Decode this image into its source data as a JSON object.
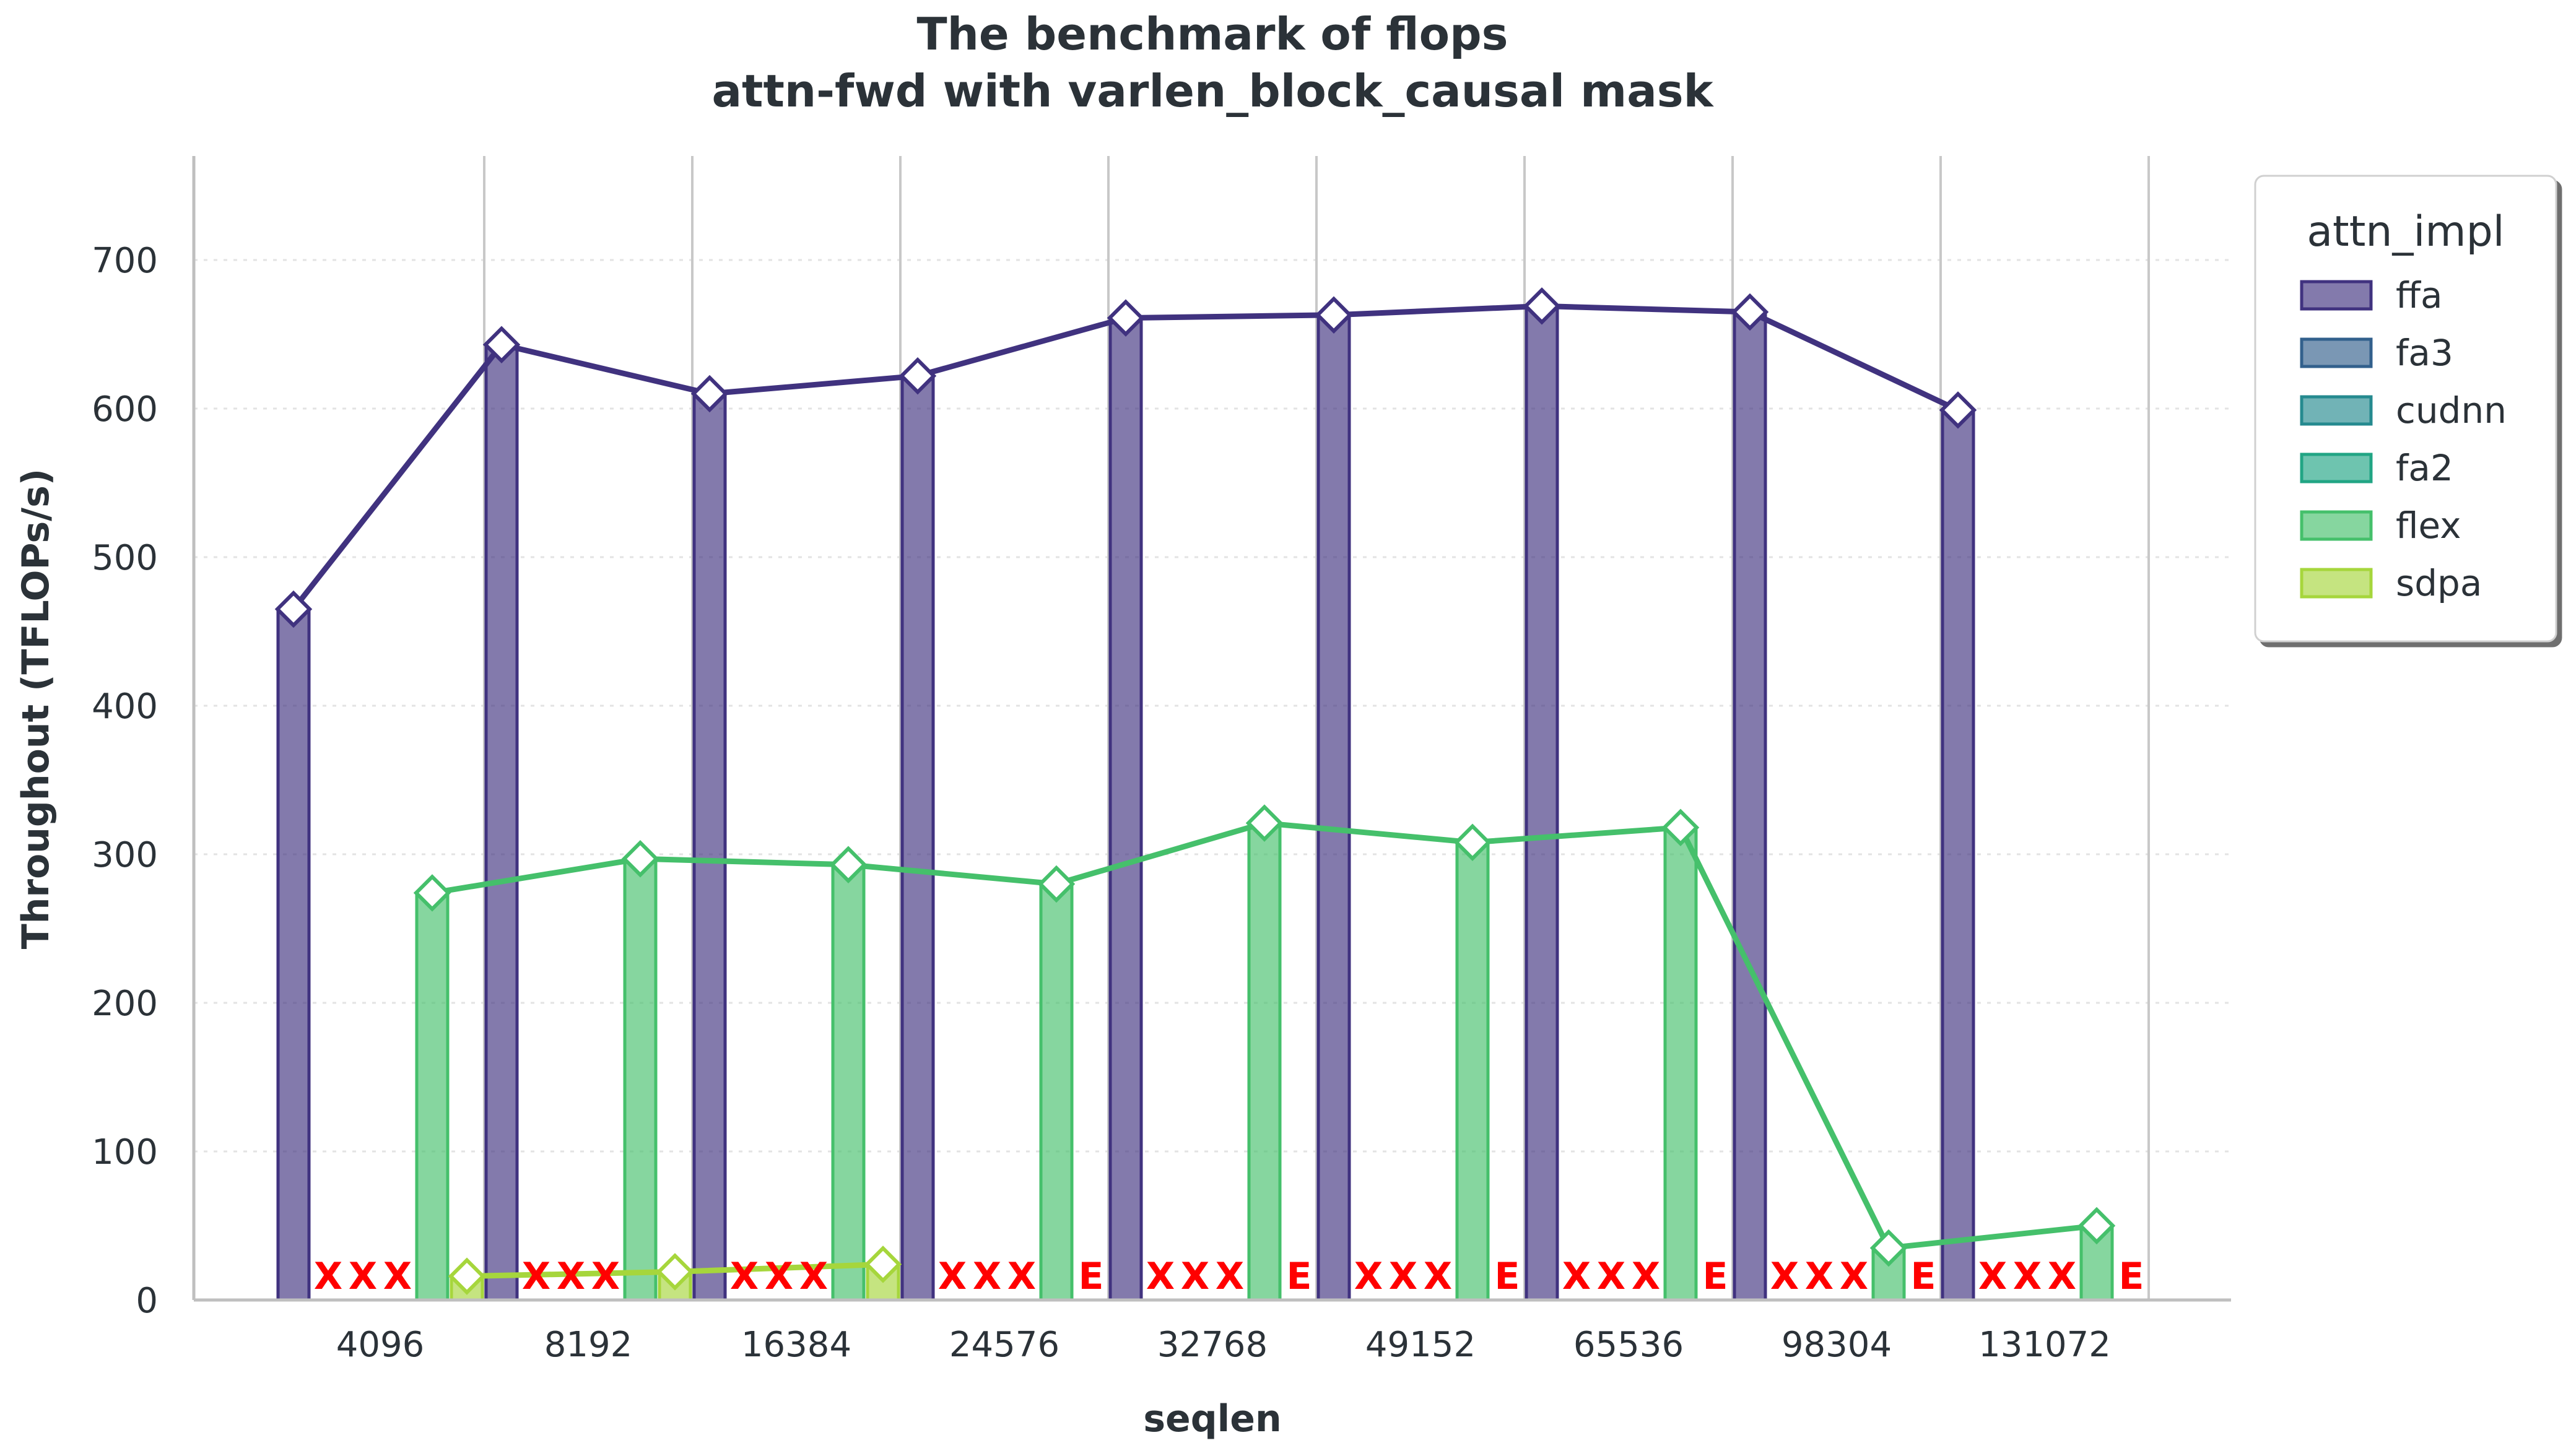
{
  "chart_data": {
    "type": "bar",
    "title": "The benchmark of flops",
    "subtitle": "attn-fwd with varlen_block_causal mask",
    "xlabel": "seqlen",
    "ylabel": "Throughout (TFLOPs/s)",
    "ylim": [
      0,
      770
    ],
    "yticks": [
      0,
      100,
      200,
      300,
      400,
      500,
      600,
      700
    ],
    "grid": true,
    "categories": [
      "4096",
      "8192",
      "16384",
      "24576",
      "32768",
      "49152",
      "65536",
      "98304",
      "131072"
    ],
    "legend": {
      "title": "attn_impl",
      "placement": "upper-right-outside"
    },
    "series": [
      {
        "name": "ffa",
        "color": "#40327f",
        "values": [
          465,
          643,
          610,
          622,
          661,
          663,
          669,
          665,
          599
        ],
        "labels": [
          "",
          "",
          "",
          "",
          "",
          "",
          "",
          "",
          ""
        ]
      },
      {
        "name": "fa3",
        "color": "#32608c",
        "values": [
          0,
          0,
          0,
          0,
          0,
          0,
          0,
          0,
          0
        ],
        "labels": [
          "X",
          "X",
          "X",
          "X",
          "X",
          "X",
          "X",
          "X",
          "X"
        ]
      },
      {
        "name": "cudnn",
        "color": "#258a8f",
        "values": [
          0,
          0,
          0,
          0,
          0,
          0,
          0,
          0,
          0
        ],
        "labels": [
          "X",
          "X",
          "X",
          "X",
          "X",
          "X",
          "X",
          "X",
          "X"
        ]
      },
      {
        "name": "fa2",
        "color": "#21a584",
        "values": [
          0,
          0,
          0,
          0,
          0,
          0,
          0,
          0,
          0
        ],
        "labels": [
          "X",
          "X",
          "X",
          "X",
          "X",
          "X",
          "X",
          "X",
          "X"
        ]
      },
      {
        "name": "flex",
        "color": "#45c06b",
        "values": [
          274,
          297,
          293,
          280,
          321,
          308,
          318,
          35,
          50
        ],
        "labels": [
          "",
          "",
          "",
          "",
          "",
          "",
          "",
          "",
          ""
        ]
      },
      {
        "name": "sdpa",
        "color": "#a6d63c",
        "values": [
          16,
          19,
          24,
          0,
          0,
          0,
          0,
          0,
          0
        ],
        "labels": [
          "",
          "",
          "",
          "E",
          "E",
          "E",
          "E",
          "E",
          "E"
        ]
      }
    ]
  }
}
